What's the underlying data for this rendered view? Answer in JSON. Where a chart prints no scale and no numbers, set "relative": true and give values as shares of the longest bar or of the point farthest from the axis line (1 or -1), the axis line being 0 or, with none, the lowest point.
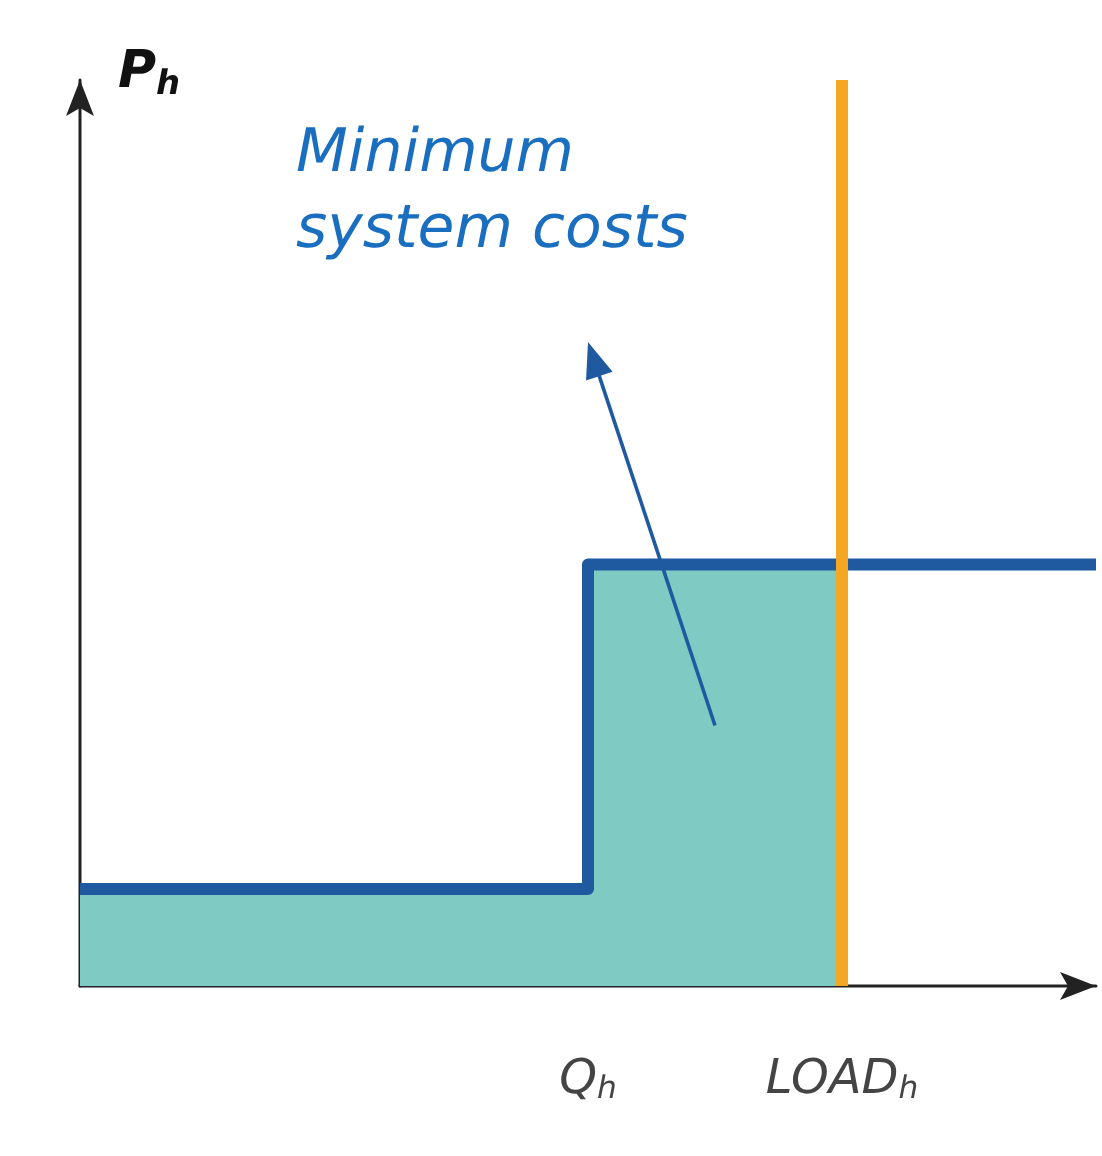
{
  "chart_data": {
    "type": "step",
    "relative": true,
    "annotations": [
      "P$_{h}$",
      "Minimum system costs"
    ],
    "categories": [
      null,
      null,
      null,
      null,
      "Q$_{h}$",
      null,
      "LOAD$_{h}$",
      null,
      null
    ],
    "grid": false,
    "marker": "none",
    "series": [
      {
        "type": "area",
        "color": "#7fcbc4",
        "values": [
          0.23,
          0.23,
          0.23,
          0.23,
          1,
          1,
          1,
          null,
          null
        ]
      },
      {
        "color": "#1f5aa0",
        "values": [
          0.23,
          0.23,
          0.23,
          0.23,
          1,
          1,
          1,
          1,
          1
        ]
      }
    ],
    "ref_lines": [
      {
        "axis": "x",
        "value": "LOAD$_{h}$",
        "color": "#f5a623"
      }
    ]
  }
}
